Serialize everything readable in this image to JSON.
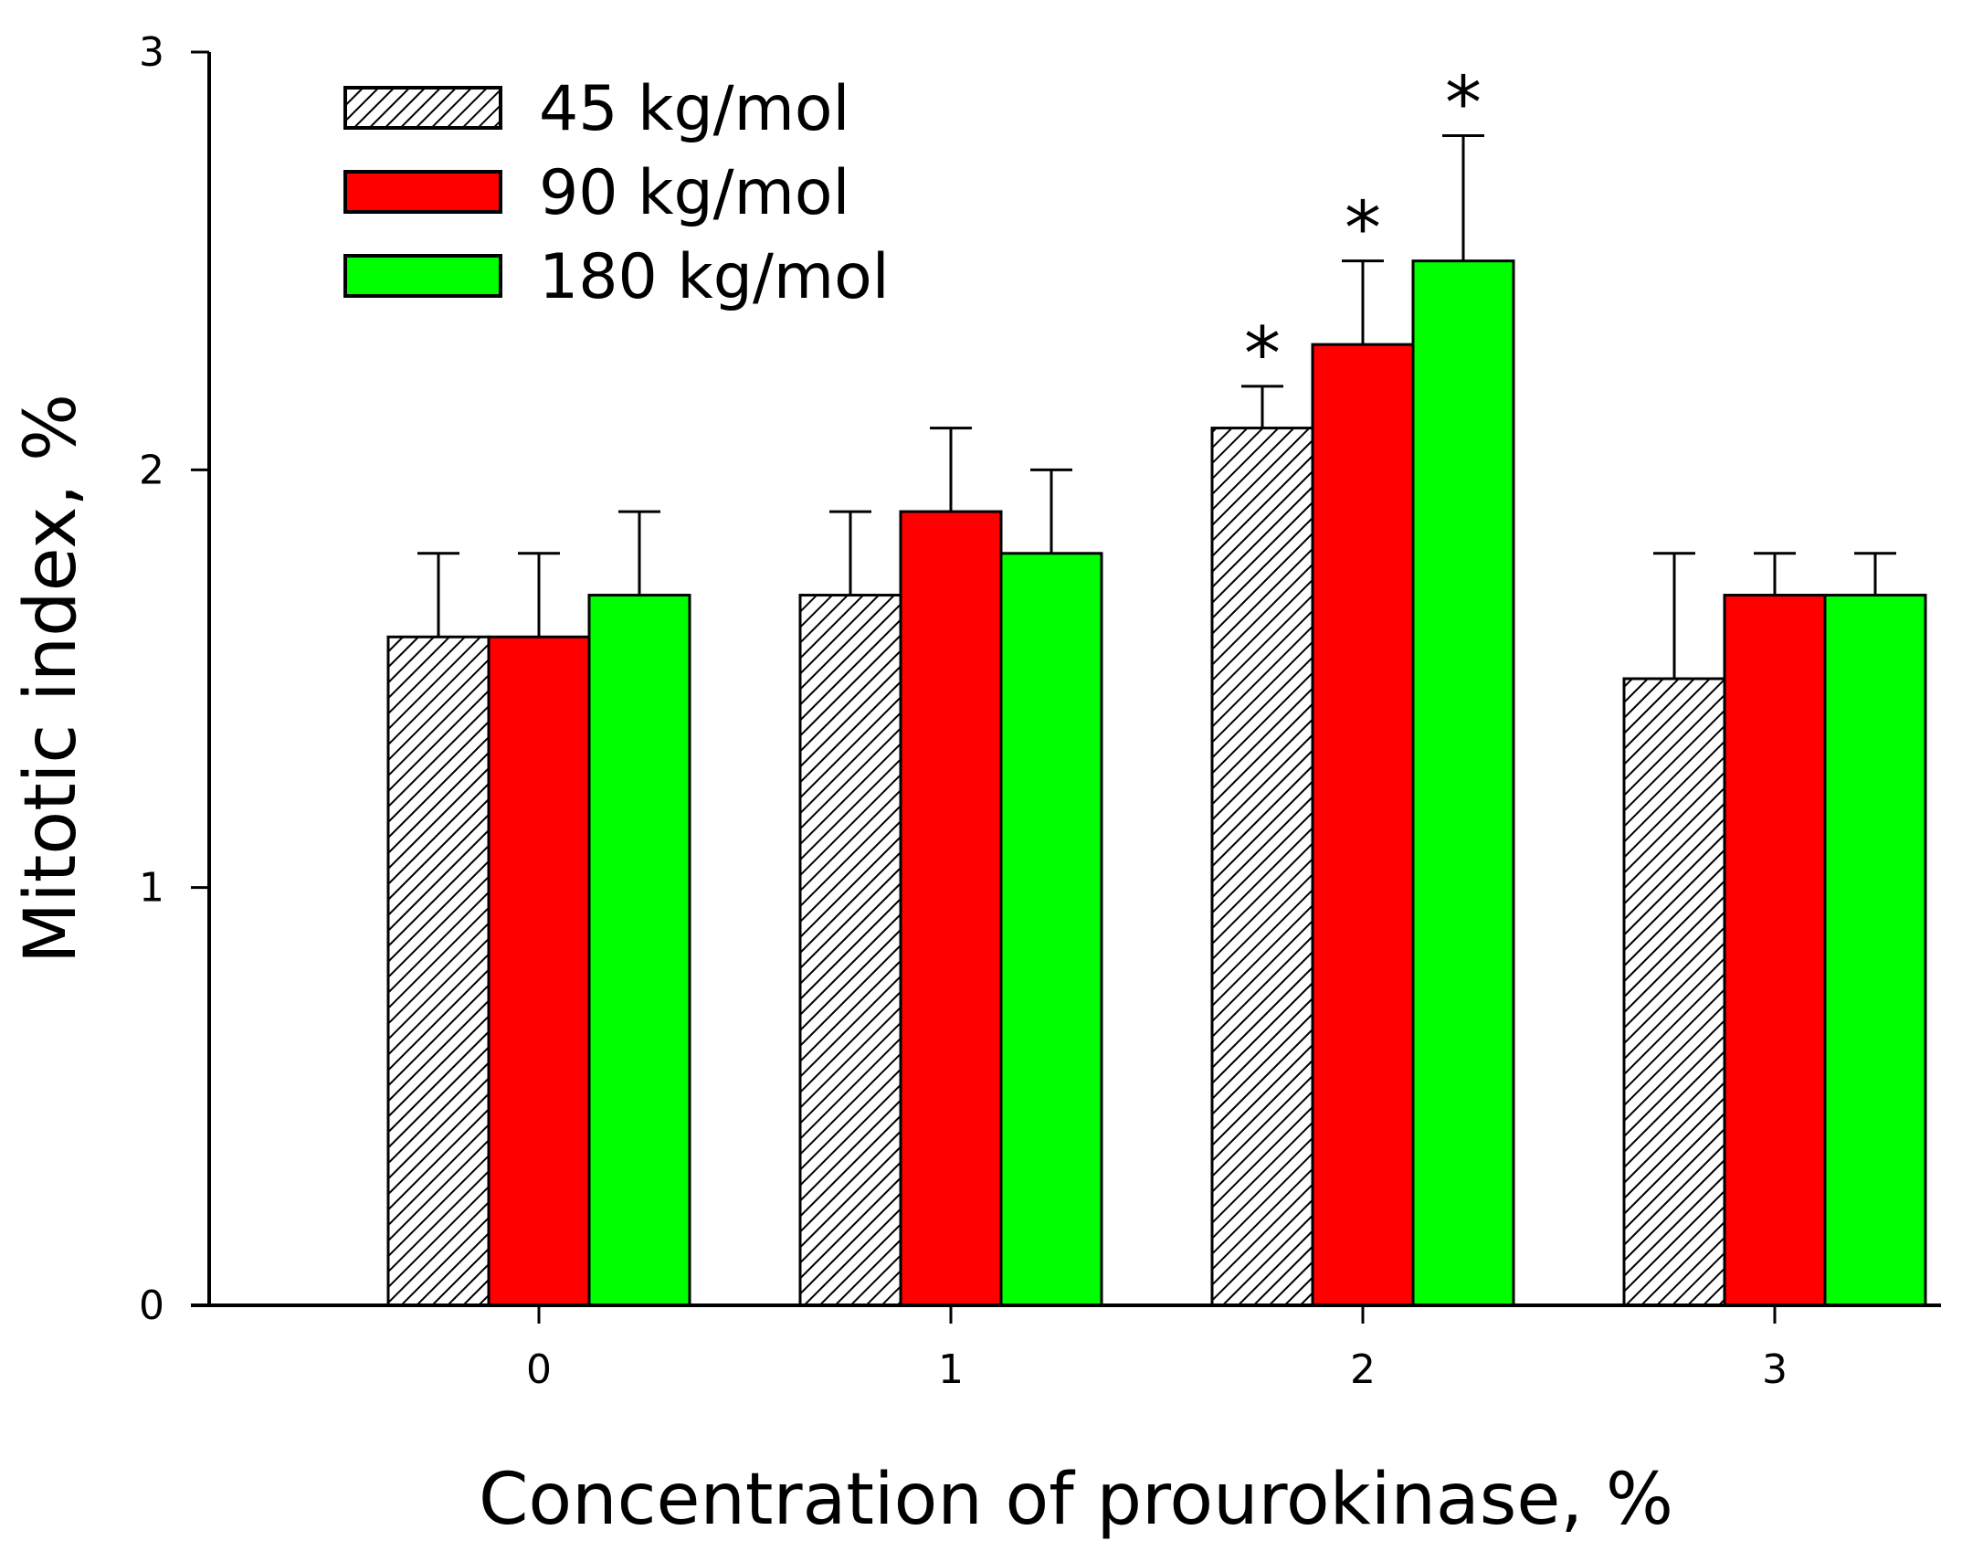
{
  "chart_data": {
    "type": "bar",
    "title": "",
    "xlabel": "Concentration of prourokinase, %",
    "ylabel": "Mitotic index, %",
    "categories": [
      "0",
      "1",
      "2",
      "3"
    ],
    "ylim": [
      0,
      3
    ],
    "yticks": [
      "0",
      "1",
      "2",
      "3"
    ],
    "legend_position": "top-left",
    "grid": false,
    "series": [
      {
        "name": "45 kg/mol",
        "color": "#ffffff",
        "pattern": "diagonal-hatch",
        "values": [
          1.6,
          1.7,
          2.1,
          1.5
        ],
        "errors": [
          0.2,
          0.2,
          0.1,
          0.3
        ],
        "significance": [
          "",
          "",
          "*",
          ""
        ]
      },
      {
        "name": "90 kg/mol",
        "color": "#ff0000",
        "pattern": "solid",
        "values": [
          1.6,
          1.9,
          2.3,
          1.7
        ],
        "errors": [
          0.2,
          0.2,
          0.2,
          0.1
        ],
        "significance": [
          "",
          "",
          "*",
          ""
        ]
      },
      {
        "name": "180 kg/mol",
        "color": "#00ff00",
        "pattern": "solid",
        "values": [
          1.7,
          1.8,
          2.5,
          1.7
        ],
        "errors": [
          0.2,
          0.2,
          0.3,
          0.1
        ],
        "significance": [
          "",
          "",
          "*",
          ""
        ]
      }
    ]
  }
}
